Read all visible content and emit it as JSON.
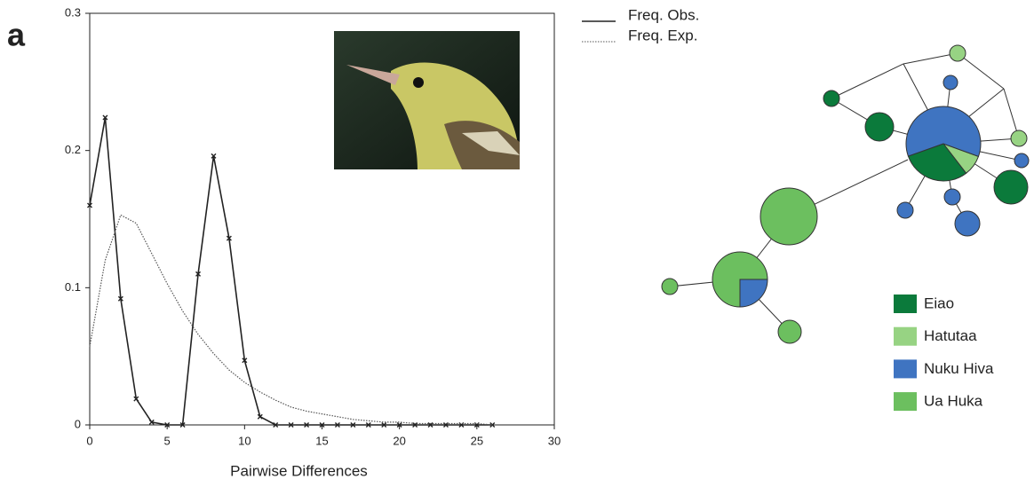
{
  "panel_label": "a",
  "chart_data": {
    "type": "line",
    "xlabel": "Pairwise Differences",
    "x": [
      0,
      1,
      2,
      3,
      4,
      5,
      6,
      7,
      8,
      9,
      10,
      11,
      12,
      13,
      14,
      15,
      16,
      17,
      18,
      19,
      20,
      21,
      22,
      23,
      24,
      25,
      26
    ],
    "series": [
      {
        "name": "Freq. Obs.",
        "color": "#222222",
        "style": "solid",
        "markers": true,
        "values": [
          0.16,
          0.224,
          0.092,
          0.019,
          0.002,
          0,
          0,
          0.11,
          0.196,
          0.136,
          0.047,
          0.006,
          0,
          0,
          0,
          0,
          0,
          0,
          0,
          0,
          0,
          0,
          0,
          0,
          0,
          0,
          0
        ]
      },
      {
        "name": "Freq. Exp.",
        "color": "#555555",
        "style": "dotted",
        "markers": false,
        "values": [
          0.057,
          0.12,
          0.153,
          0.147,
          0.125,
          0.103,
          0.083,
          0.066,
          0.052,
          0.04,
          0.031,
          0.024,
          0.018,
          0.013,
          0.01,
          0.008,
          0.006,
          0.004,
          0.003,
          0.002,
          0.002,
          0.001,
          0.001,
          0.001,
          0.001,
          0.001,
          0
        ]
      }
    ],
    "xlim": [
      0,
      30
    ],
    "xticks": [
      0,
      5,
      10,
      15,
      20,
      25,
      30
    ],
    "ylim": [
      0,
      0.3
    ],
    "yticks": [
      0,
      0.1,
      0.2,
      0.3
    ],
    "grid": false
  },
  "network_legend": [
    {
      "label": "Eiao",
      "color": "#0b7a3b"
    },
    {
      "label": "Hatutaa",
      "color": "#97d383"
    },
    {
      "label": "Nuku Hiva",
      "color": "#3f74c1"
    },
    {
      "label": "Ua Huka",
      "color": "#6cbf5f"
    }
  ]
}
